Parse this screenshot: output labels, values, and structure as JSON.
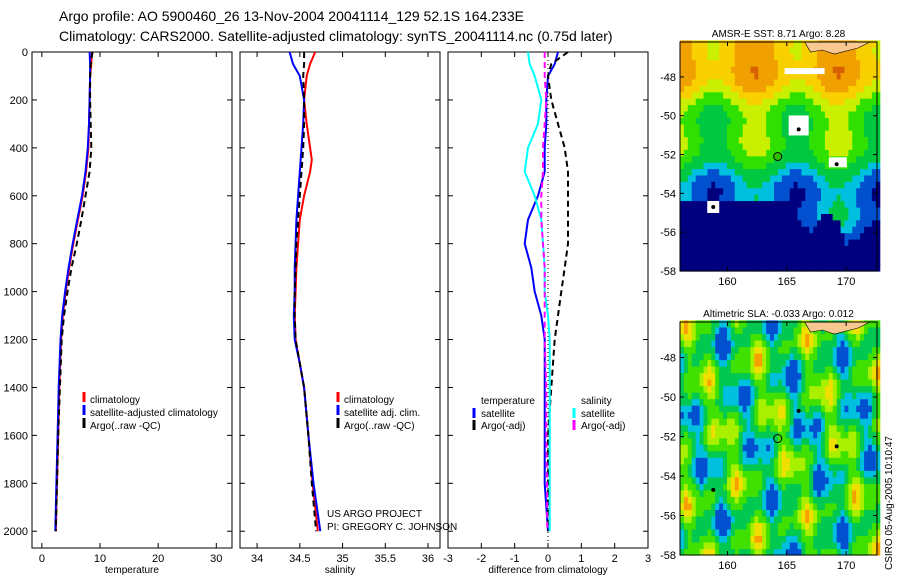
{
  "title_line1": "Argo profile: AO 5900460_26 13-Nov-2004 20041114_129 52.1S 164.233E",
  "title_line2": "Climatology: CARS2000. Satellite-adjusted climatology: synTS_20041114.nc (0.75d later)",
  "credit": {
    "line1": "US ARGO PROJECT",
    "line2": "PI: GREGORY C. JOHNSON"
  },
  "timestamp": "CSIRO 05-Aug-2005 10:10:47",
  "colors": {
    "climatology": "#ff0000",
    "satellite": "#0000ff",
    "argo": "#000000",
    "sal_satellite": "#00ffff",
    "sal_argo": "#ff00ff"
  },
  "chart_data": [
    {
      "type": "line",
      "xlabel": "temperature",
      "ylabel": "",
      "xlim": [
        -1.7,
        32.7
      ],
      "ylim": [
        0,
        2070
      ],
      "y_reversed": true,
      "xticks": [
        0,
        10,
        20,
        30
      ],
      "yticks": [
        0,
        200,
        400,
        600,
        800,
        1000,
        1200,
        1400,
        1600,
        1800,
        2000
      ],
      "legend": [
        "climatology",
        "satellite-adjusted climatology",
        "Argo(..raw -QC)"
      ],
      "series": [
        {
          "name": "climatology",
          "depth": [
            0,
            50,
            100,
            200,
            300,
            400,
            500,
            600,
            700,
            800,
            900,
            1000,
            1100,
            1200,
            1400,
            1600,
            1800,
            2000
          ],
          "values": [
            8.6,
            8.5,
            8.3,
            8.2,
            8.1,
            8.0,
            7.6,
            7.0,
            6.2,
            5.4,
            4.7,
            4.1,
            3.6,
            3.3,
            3.0,
            2.8,
            2.6,
            2.4
          ]
        },
        {
          "name": "satellite-adjusted climatology",
          "depth": [
            0,
            50,
            100,
            200,
            300,
            400,
            500,
            600,
            700,
            800,
            900,
            1000,
            1100,
            1200,
            1400,
            1600,
            1800,
            2000
          ],
          "values": [
            8.2,
            8.3,
            8.3,
            8.2,
            8.1,
            7.9,
            7.5,
            6.9,
            6.1,
            5.3,
            4.6,
            4.0,
            3.5,
            3.2,
            2.9,
            2.7,
            2.5,
            2.3
          ]
        },
        {
          "name": "Argo(..raw -QC)",
          "dashed": true,
          "depth": [
            0,
            50,
            100,
            200,
            300,
            400,
            500,
            600,
            700,
            800,
            900,
            1000,
            1100,
            1200,
            1400,
            1600,
            1800,
            2000
          ],
          "values": [
            8.7,
            8.4,
            8.3,
            8.3,
            8.4,
            8.5,
            8.2,
            7.5,
            6.8,
            6.0,
            5.1,
            4.4,
            3.8,
            3.4,
            3.1,
            2.8,
            2.6,
            2.4
          ]
        }
      ]
    },
    {
      "type": "line",
      "xlabel": "salinity",
      "xlim": [
        33.8,
        36.14
      ],
      "ylim": [
        0,
        2070
      ],
      "y_reversed": true,
      "xticks": [
        34,
        34.5,
        35,
        35.5,
        36
      ],
      "legend": [
        "climatology",
        "satellite adj. clim.",
        "Argo(..raw -QC)"
      ],
      "series": [
        {
          "name": "climatology",
          "depth": [
            0,
            50,
            100,
            200,
            300,
            400,
            450,
            500,
            600,
            700,
            800,
            900,
            1000,
            1100,
            1200,
            1300,
            1400,
            1600,
            1800,
            2000
          ],
          "values": [
            34.68,
            34.62,
            34.58,
            34.55,
            34.58,
            34.62,
            34.64,
            34.62,
            34.55,
            34.5,
            34.48,
            34.46,
            34.45,
            34.44,
            34.45,
            34.5,
            34.55,
            34.6,
            34.65,
            34.71
          ]
        },
        {
          "name": "satellite adj. clim.",
          "depth": [
            0,
            50,
            100,
            200,
            300,
            400,
            500,
            600,
            700,
            800,
            900,
            1000,
            1100,
            1200,
            1300,
            1400,
            1600,
            1800,
            2000
          ],
          "values": [
            34.38,
            34.42,
            34.5,
            34.55,
            34.54,
            34.52,
            34.5,
            34.48,
            34.46,
            34.45,
            34.44,
            34.44,
            34.43,
            34.44,
            34.5,
            34.55,
            34.6,
            34.66,
            34.74
          ]
        },
        {
          "name": "Argo(..raw -QC)",
          "dashed": true,
          "depth": [
            0,
            50,
            100,
            200,
            300,
            400,
            500,
            600,
            700,
            800,
            900,
            1000,
            1100,
            1200,
            1300,
            1400,
            1600,
            1800,
            2000
          ],
          "values": [
            34.55,
            34.55,
            34.54,
            34.55,
            34.55,
            34.54,
            34.52,
            34.5,
            34.48,
            34.46,
            34.45,
            34.44,
            34.44,
            34.45,
            34.5,
            34.55,
            34.6,
            34.64,
            34.69
          ]
        }
      ]
    },
    {
      "type": "line",
      "xlabel": "difference from climatology",
      "xlim": [
        -3,
        3
      ],
      "ylim": [
        0,
        2070
      ],
      "y_reversed": true,
      "xticks": [
        -3,
        -2,
        -1,
        0,
        1,
        2,
        3
      ],
      "legend_groups": [
        {
          "heading": "temperature",
          "items": [
            "satellite",
            "Argo(-adj)"
          ]
        },
        {
          "heading": "salinity",
          "items": [
            "satellite",
            "Argo(-adj)"
          ]
        }
      ],
      "series": [
        {
          "name": "temperature satellite",
          "depth": [
            0,
            50,
            100,
            200,
            300,
            400,
            500,
            600,
            700,
            800,
            900,
            1000,
            1100,
            1200,
            1400,
            1600,
            1800,
            2000
          ],
          "values": [
            0.3,
            0.2,
            0.0,
            -0.05,
            -0.05,
            -0.1,
            -0.1,
            -0.3,
            -0.6,
            -0.7,
            -0.5,
            -0.4,
            -0.2,
            -0.1,
            -0.1,
            -0.1,
            -0.1,
            0.0
          ]
        },
        {
          "name": "temperature Argo(-adj)",
          "dashed": true,
          "depth": [
            0,
            50,
            100,
            200,
            300,
            400,
            500,
            600,
            700,
            800,
            900,
            1000,
            1100,
            1200,
            1400,
            1600,
            1800,
            2000
          ],
          "values": [
            0.6,
            0.1,
            0.0,
            0.1,
            0.3,
            0.5,
            0.6,
            0.6,
            0.6,
            0.6,
            0.5,
            0.4,
            0.3,
            0.2,
            0.1,
            0.0,
            0.0,
            0.0
          ]
        },
        {
          "name": "salinity satellite",
          "depth": [
            0,
            50,
            100,
            200,
            300,
            400,
            500,
            600,
            700,
            800,
            900,
            1000,
            1100,
            1200,
            1400,
            1600,
            1800,
            2000
          ],
          "values": [
            -0.6,
            -0.55,
            -0.4,
            -0.2,
            -0.3,
            -0.6,
            -0.7,
            -0.4,
            -0.2,
            -0.15,
            -0.1,
            -0.1,
            0.0,
            0.05,
            0.05,
            0.05,
            0.05,
            0.05
          ]
        },
        {
          "name": "salinity Argo(-adj)",
          "dashed": true,
          "depth": [
            0,
            50,
            100,
            200,
            300,
            400,
            500,
            600,
            700,
            800,
            900,
            1000,
            1100,
            1200,
            1400,
            1600,
            1800,
            2000
          ],
          "values": [
            -0.1,
            -0.1,
            -0.1,
            -0.05,
            -0.1,
            -0.15,
            -0.15,
            -0.2,
            -0.2,
            -0.15,
            -0.1,
            -0.1,
            -0.1,
            -0.1,
            -0.05,
            -0.05,
            -0.03,
            -0.02
          ]
        }
      ]
    },
    {
      "type": "heatmap",
      "title": "AMSR-E SST: 8.71 Argo: 8.28",
      "xlim": [
        156,
        172.6
      ],
      "ylim": [
        -58,
        -46.2
      ],
      "xticks": [
        160,
        165,
        170
      ],
      "yticks": [
        -48,
        -50,
        -52,
        -54,
        -56,
        -58
      ],
      "marker": {
        "lon": 164.233,
        "lat": -52.1
      }
    },
    {
      "type": "heatmap",
      "title": "Altimetric SLA: -0.033 Argo: 0.012",
      "xlim": [
        156,
        172.6
      ],
      "ylim": [
        -58,
        -46.2
      ],
      "xticks": [
        160,
        165,
        170
      ],
      "yticks": [
        -48,
        -50,
        -52,
        -54,
        -56,
        -58
      ],
      "marker": {
        "lon": 164.233,
        "lat": -52.1
      }
    }
  ]
}
